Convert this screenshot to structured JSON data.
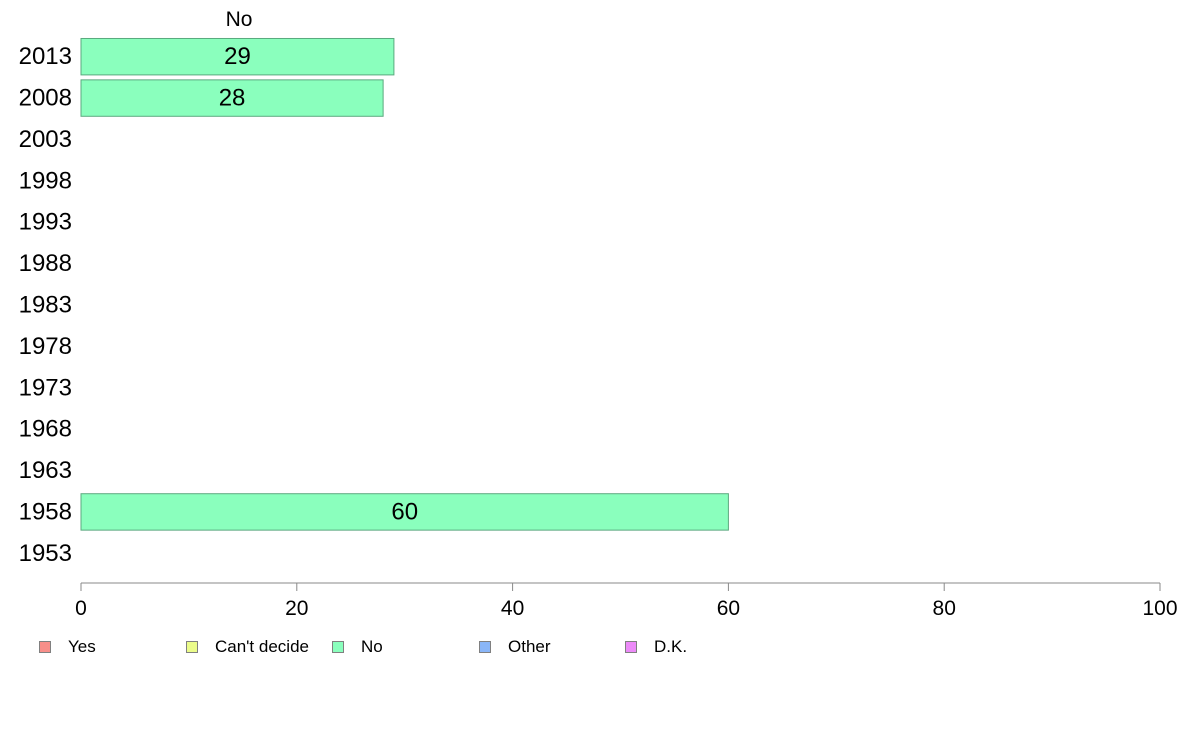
{
  "chart_data": {
    "type": "bar",
    "orientation": "horizontal",
    "panel_title": "No",
    "categories": [
      "2013",
      "2008",
      "2003",
      "1998",
      "1993",
      "1988",
      "1983",
      "1978",
      "1973",
      "1968",
      "1963",
      "1958",
      "1953"
    ],
    "series": [
      {
        "name": "No",
        "color": "#8affbd",
        "values": [
          29,
          28,
          null,
          null,
          null,
          null,
          null,
          null,
          null,
          null,
          null,
          60,
          null
        ],
        "labels": [
          "29",
          "28",
          "",
          "",
          "",
          "",
          "",
          "",
          "",
          "",
          "",
          "60",
          ""
        ]
      }
    ],
    "xlim": [
      0,
      100
    ],
    "xticks": [
      "0",
      "20",
      "40",
      "60",
      "80",
      "100"
    ],
    "grid": false,
    "legend_position": "bottom",
    "legend": [
      {
        "label": "Yes",
        "color": "#f88f8a"
      },
      {
        "label": "Can't decide",
        "color": "#ebfc8a"
      },
      {
        "label": "No",
        "color": "#8affbd"
      },
      {
        "label": "Other",
        "color": "#8ab6f8"
      },
      {
        "label": "D.K.",
        "color": "#ec8af8"
      }
    ]
  }
}
